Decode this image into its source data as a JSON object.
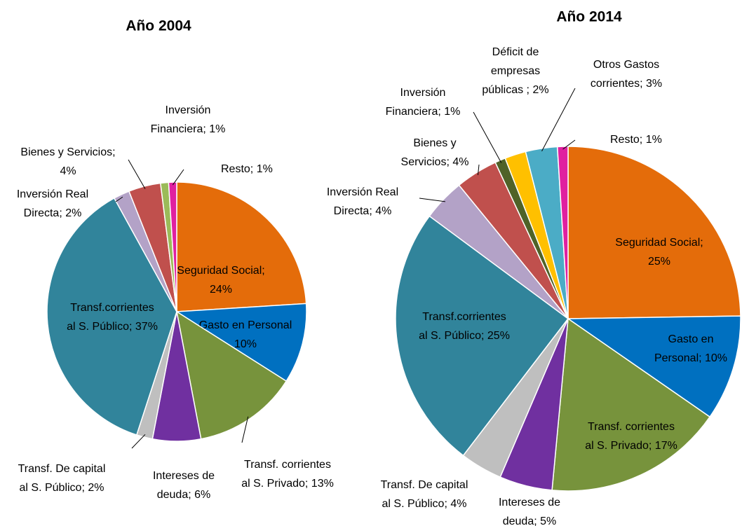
{
  "chart_data": [
    {
      "type": "pie",
      "title": "Año 2004",
      "values": [
        24,
        10,
        13,
        6,
        2,
        37,
        2,
        4,
        1,
        1
      ],
      "value_labels": [
        "Seguridad Social; 24%",
        "Gasto en Personal 10%",
        "Transf. corrientes al S. Privado; 13%",
        "Intereses de deuda; 6%",
        "Transf. De capital al S. Público; 2%",
        "Transf.corrientes al S. Público; 37%",
        "Inversión Real Directa; 2%",
        "Bienes y Servicios; 4%",
        "Inversión Financiera; 1%",
        "Resto; 1%"
      ],
      "colors": [
        "#E46C0A",
        "#0070C0",
        "#77933C",
        "#7030A0",
        "#BFBFBF",
        "#31849B",
        "#B3A2C7",
        "#C0504D",
        "#9BBB59",
        "#E020A0"
      ]
    },
    {
      "type": "pie",
      "title": "Año 2014",
      "values": [
        25,
        10,
        17,
        5,
        4,
        25,
        4,
        4,
        1,
        2,
        3,
        1
      ],
      "value_labels": [
        "Seguridad Social; 25%",
        "Gasto en Personal; 10%",
        "Transf. corrientes al S. Privado; 17%",
        "Intereses de deuda; 5%",
        "Transf. De capital al S. Público; 4%",
        "Transf.corrientes al S. Público; 25%",
        "Inversión Real Directa; 4%",
        "Bienes y Servicios; 4%",
        "Inversión Financiera; 1%",
        "Déficit de empresas públicas ; 2%",
        "Otros Gastos corrientes; 3%",
        "Resto; 1%"
      ],
      "colors": [
        "#E46C0A",
        "#0070C0",
        "#77933C",
        "#7030A0",
        "#BFBFBF",
        "#31849B",
        "#B3A2C7",
        "#C0504D",
        "#4F6228",
        "#FFC000",
        "#4BACC6",
        "#E020A0"
      ]
    }
  ]
}
